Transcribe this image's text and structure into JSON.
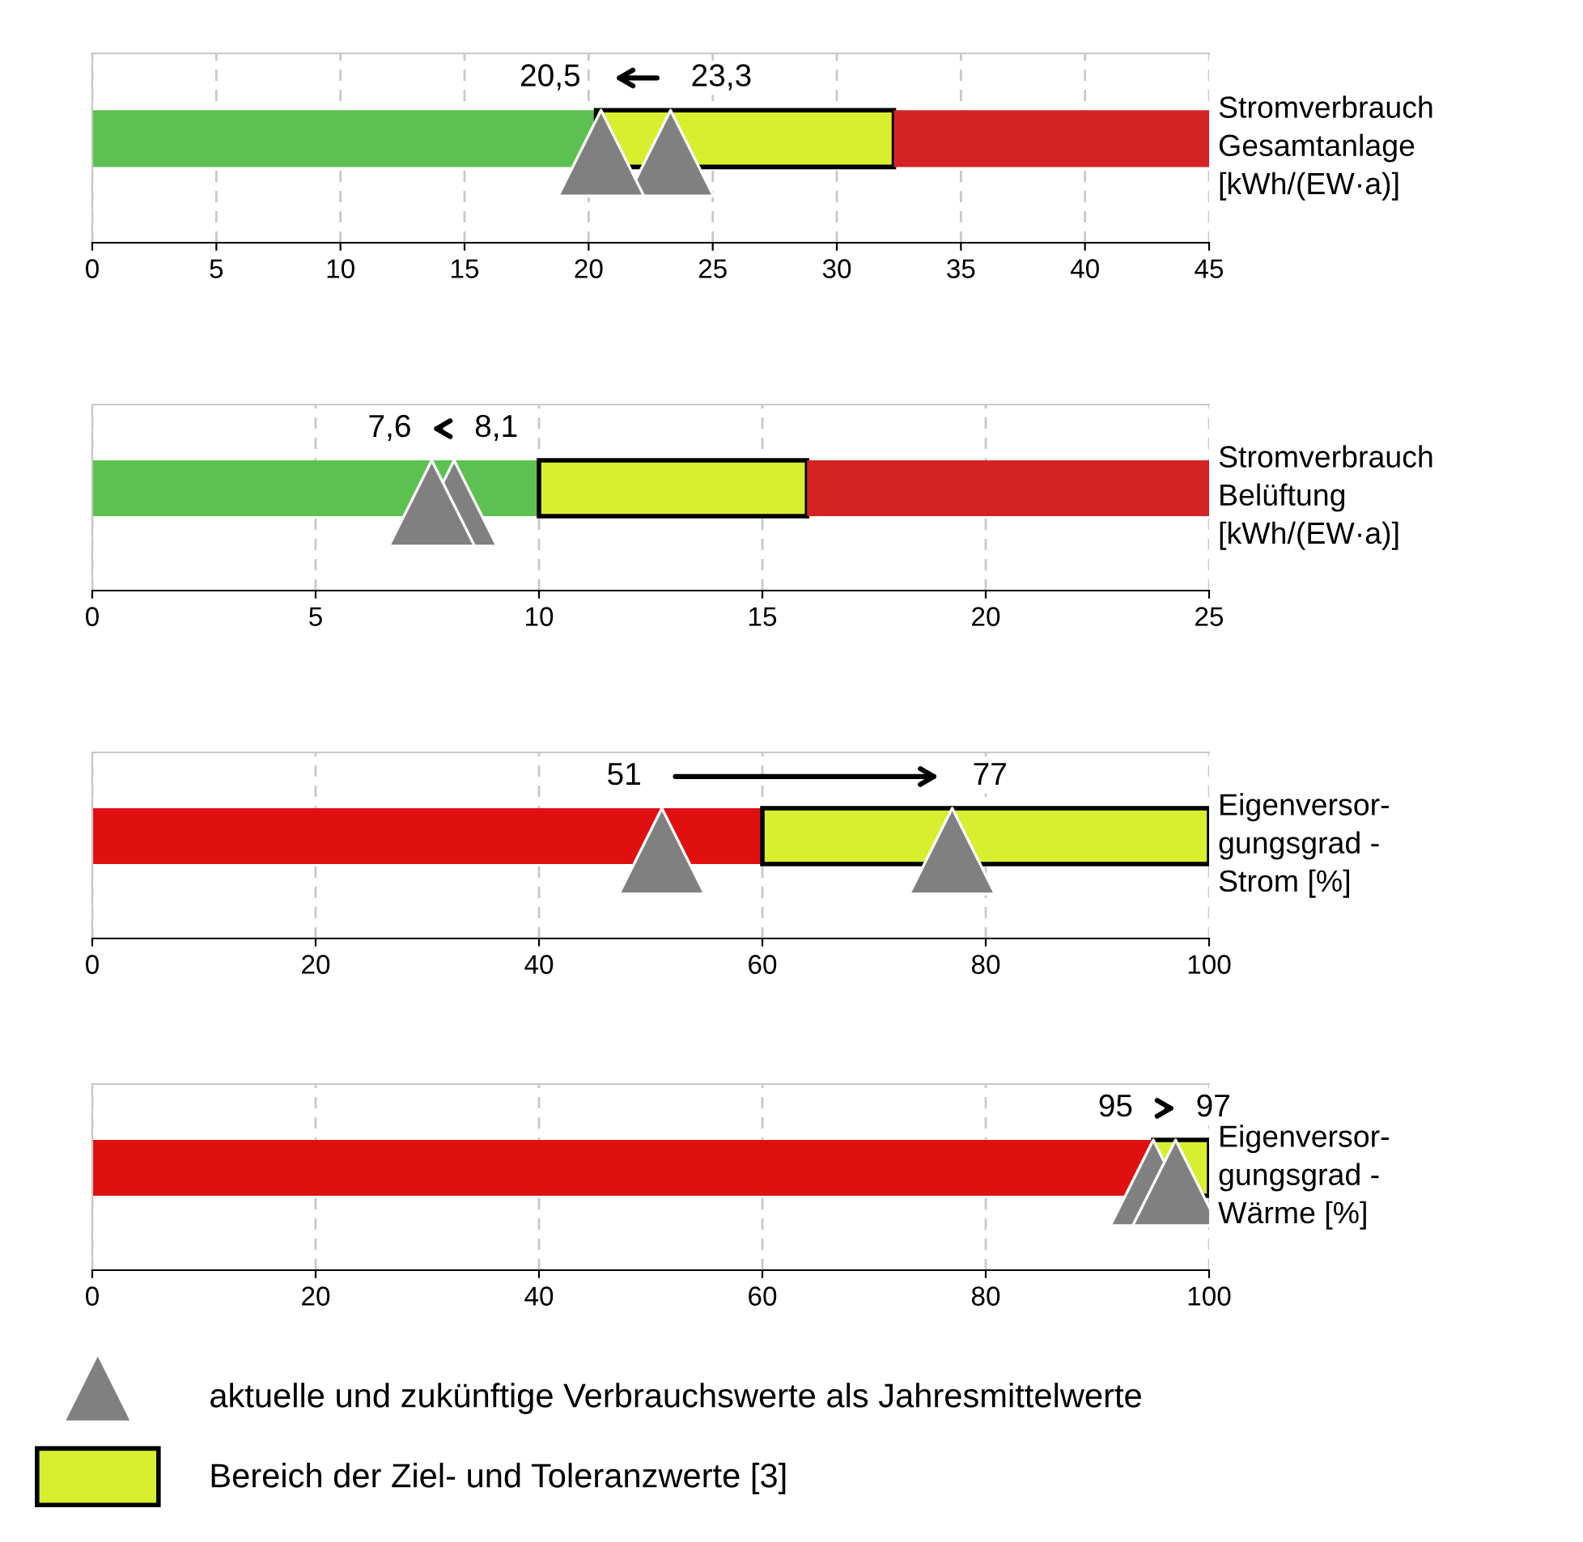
{
  "chart_data": [
    {
      "type": "scatter",
      "orientation": "horizontal",
      "categories": [
        null
      ],
      "ylabel": "Stromverbrauch\nGesamtanlage\n[kWh/(EW·a)]",
      "marker": "triangle",
      "grid": "x",
      "legend": "bottom left",
      "series": [
        {
          "name": "aktuelle und zukünftige Verbrauchswerte als Jahresmittelwerte",
          "color": "#808080",
          "values": [
            23.3
          ],
          "value_labels": [
            "23,3"
          ]
        },
        {
          "color": "#808080",
          "values": [
            20.5
          ],
          "value_labels": [
            "20,5"
          ]
        }
      ],
      "bands": [
        {
          "axis": "x",
          "from": 0,
          "to": 20.3,
          "color": "#5cc150"
        },
        {
          "axis": "x",
          "from": 20.3,
          "to": 32.3,
          "color": "#d8ef30",
          "label": "Bereich der Ziel- und Toleranzwerte [3]"
        },
        {
          "axis": "x",
          "from": 32.3,
          "to": 45,
          "color": "#d42323"
        }
      ],
      "xlim": [
        0,
        45
      ],
      "xticks": [
        0,
        5,
        10,
        15,
        20,
        25,
        30,
        35,
        40,
        45
      ]
    },
    {
      "type": "scatter",
      "orientation": "horizontal",
      "categories": [
        null
      ],
      "ylabel": "Stromverbrauch\nBelüftung\n[kWh/(EW·a)]",
      "marker": "triangle",
      "grid": "x",
      "series": [
        {
          "color": "#808080",
          "values": [
            8.1
          ],
          "value_labels": [
            "8,1"
          ]
        },
        {
          "color": "#808080",
          "values": [
            7.6
          ],
          "value_labels": [
            "7,6"
          ]
        }
      ],
      "bands": [
        {
          "axis": "x",
          "from": 0,
          "to": 10,
          "color": "#5cc150"
        },
        {
          "axis": "x",
          "from": 10,
          "to": 16,
          "color": "#d8ef30"
        },
        {
          "axis": "x",
          "from": 16,
          "to": 25,
          "color": "#d42323"
        }
      ],
      "xlim": [
        0,
        25
      ],
      "xticks": [
        0,
        5,
        10,
        15,
        20,
        25
      ]
    },
    {
      "type": "scatter",
      "orientation": "horizontal",
      "categories": [
        null
      ],
      "ylabel": "Eigenversor-\ngungsgrad -\nStrom [%]",
      "marker": "triangle",
      "grid": "x",
      "series": [
        {
          "color": "#808080",
          "values": [
            51
          ],
          "value_labels": [
            "51"
          ]
        },
        {
          "color": "#808080",
          "values": [
            77
          ],
          "value_labels": [
            "77"
          ]
        }
      ],
      "bands": [
        {
          "axis": "x",
          "from": 0,
          "to": 60,
          "color": "#e01010"
        },
        {
          "axis": "x",
          "from": 60,
          "to": 100,
          "color": "#d8ef30"
        }
      ],
      "xlim": [
        0,
        100
      ],
      "xticks": [
        0,
        20,
        40,
        60,
        80,
        100
      ]
    },
    {
      "type": "scatter",
      "orientation": "horizontal",
      "categories": [
        null
      ],
      "ylabel": "Eigenversor-\ngungsgrad -\nWärme [%]",
      "marker": "triangle",
      "grid": "x",
      "series": [
        {
          "color": "#808080",
          "values": [
            95
          ],
          "value_labels": [
            "95"
          ]
        },
        {
          "color": "#808080",
          "values": [
            97
          ],
          "value_labels": [
            "97"
          ]
        }
      ],
      "bands": [
        {
          "axis": "x",
          "from": 0,
          "to": 95,
          "color": "#e01010"
        },
        {
          "axis": "x",
          "from": 95,
          "to": 100,
          "color": "#d8ef30"
        }
      ],
      "xlim": [
        0,
        100
      ],
      "xticks": [
        0,
        20,
        40,
        60,
        80,
        100
      ]
    }
  ]
}
